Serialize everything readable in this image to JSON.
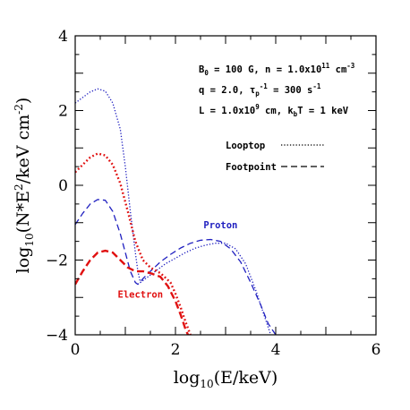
{
  "chart_data": {
    "type": "line",
    "xlabel": {
      "pre": "log",
      "sub": "10",
      "post": "(E/keV)"
    },
    "ylabel": {
      "pre": "log",
      "sub": "10",
      "mid": "(N*E",
      "sup": "2",
      "mid2": "/keV cm",
      "sup2": "-2",
      "post": ")"
    },
    "xlim": [
      0,
      6
    ],
    "ylim": [
      -4,
      4
    ],
    "xticks": [
      0,
      2,
      4,
      6
    ],
    "yticks": [
      -4,
      -2,
      0,
      2,
      4
    ],
    "annotations": [
      {
        "parts": [
          "B",
          "0",
          " = 100 G, n = 1.0x10",
          "11",
          " cm",
          "-3"
        ],
        "kinds": [
          "n",
          "sub",
          "n",
          "sup",
          "n",
          "sup"
        ]
      },
      {
        "parts": [
          "q = 2.0, τ",
          "p",
          "-1",
          " = 300 s",
          "-1"
        ],
        "kinds": [
          "n",
          "sub",
          "sup",
          "n",
          "sup"
        ]
      },
      {
        "parts": [
          "L = 1.0x10",
          "9",
          " cm, k",
          "b",
          "T = 1 keV"
        ],
        "kinds": [
          "n",
          "sup",
          "n",
          "sub",
          "n"
        ]
      }
    ],
    "legend": {
      "position": "upper-right",
      "entries": [
        {
          "label": "Looptop",
          "style": "dotted"
        },
        {
          "label": "Footpoint",
          "style": "dashed"
        }
      ]
    },
    "colors": {
      "proton": "#2020c0",
      "electron": "#e01010"
    },
    "series_labels": [
      {
        "name": "Proton",
        "color": "#2020c0",
        "x": 2.9,
        "y": -1.15
      },
      {
        "name": "Electron",
        "color": "#e01010",
        "x": 1.3,
        "y": -3.0
      }
    ],
    "series": [
      {
        "particle": "proton",
        "location": "looptop",
        "color": "#2020c0",
        "style": "dotted",
        "width": 1.3,
        "x": [
          0,
          0.15,
          0.3,
          0.45,
          0.6,
          0.75,
          0.9,
          1.0,
          1.1,
          1.2,
          1.25,
          1.3,
          1.35,
          1.45,
          1.6,
          1.8,
          2.0,
          2.2,
          2.4,
          2.6,
          2.8,
          3.0,
          3.2,
          3.4,
          3.6,
          3.75,
          3.9
        ],
        "y": [
          2.2,
          2.35,
          2.5,
          2.58,
          2.52,
          2.2,
          1.5,
          0.5,
          -0.7,
          -1.8,
          -2.3,
          -2.6,
          -2.55,
          -2.45,
          -2.3,
          -2.1,
          -1.95,
          -1.8,
          -1.68,
          -1.6,
          -1.55,
          -1.55,
          -1.7,
          -2.1,
          -2.8,
          -3.4,
          -4.0
        ]
      },
      {
        "particle": "proton",
        "location": "footpoint",
        "color": "#2020c0",
        "style": "dashed",
        "width": 1.3,
        "x": [
          0,
          0.15,
          0.3,
          0.45,
          0.6,
          0.75,
          0.9,
          1.0,
          1.1,
          1.2,
          1.25,
          1.35,
          1.5,
          1.7,
          1.9,
          2.1,
          2.3,
          2.5,
          2.7,
          2.9,
          3.1,
          3.3,
          3.5,
          3.7,
          3.85,
          4.0
        ],
        "y": [
          -1.05,
          -0.75,
          -0.5,
          -0.38,
          -0.4,
          -0.7,
          -1.3,
          -1.8,
          -2.3,
          -2.6,
          -2.65,
          -2.5,
          -2.3,
          -2.05,
          -1.85,
          -1.68,
          -1.55,
          -1.47,
          -1.45,
          -1.5,
          -1.7,
          -2.05,
          -2.6,
          -3.2,
          -3.7,
          -4.0
        ]
      },
      {
        "particle": "electron",
        "location": "looptop",
        "color": "#e01010",
        "style": "dotted",
        "width": 2.4,
        "x": [
          0,
          0.15,
          0.3,
          0.45,
          0.6,
          0.75,
          0.9,
          1.05,
          1.2,
          1.35,
          1.5,
          1.7,
          1.9,
          2.0,
          2.1,
          2.2,
          2.3
        ],
        "y": [
          0.35,
          0.55,
          0.75,
          0.85,
          0.8,
          0.55,
          0.05,
          -0.7,
          -1.5,
          -2.0,
          -2.2,
          -2.35,
          -2.6,
          -2.9,
          -3.25,
          -3.65,
          -4.0
        ]
      },
      {
        "particle": "electron",
        "location": "footpoint",
        "color": "#e01010",
        "style": "dashed",
        "width": 2.4,
        "x": [
          0,
          0.15,
          0.3,
          0.45,
          0.6,
          0.75,
          0.9,
          1.05,
          1.2,
          1.35,
          1.5,
          1.7,
          1.85,
          2.0,
          2.1,
          2.2,
          2.25
        ],
        "y": [
          -2.65,
          -2.3,
          -2.0,
          -1.8,
          -1.75,
          -1.8,
          -2.0,
          -2.2,
          -2.3,
          -2.3,
          -2.35,
          -2.45,
          -2.7,
          -3.1,
          -3.45,
          -3.85,
          -4.0
        ]
      }
    ]
  }
}
